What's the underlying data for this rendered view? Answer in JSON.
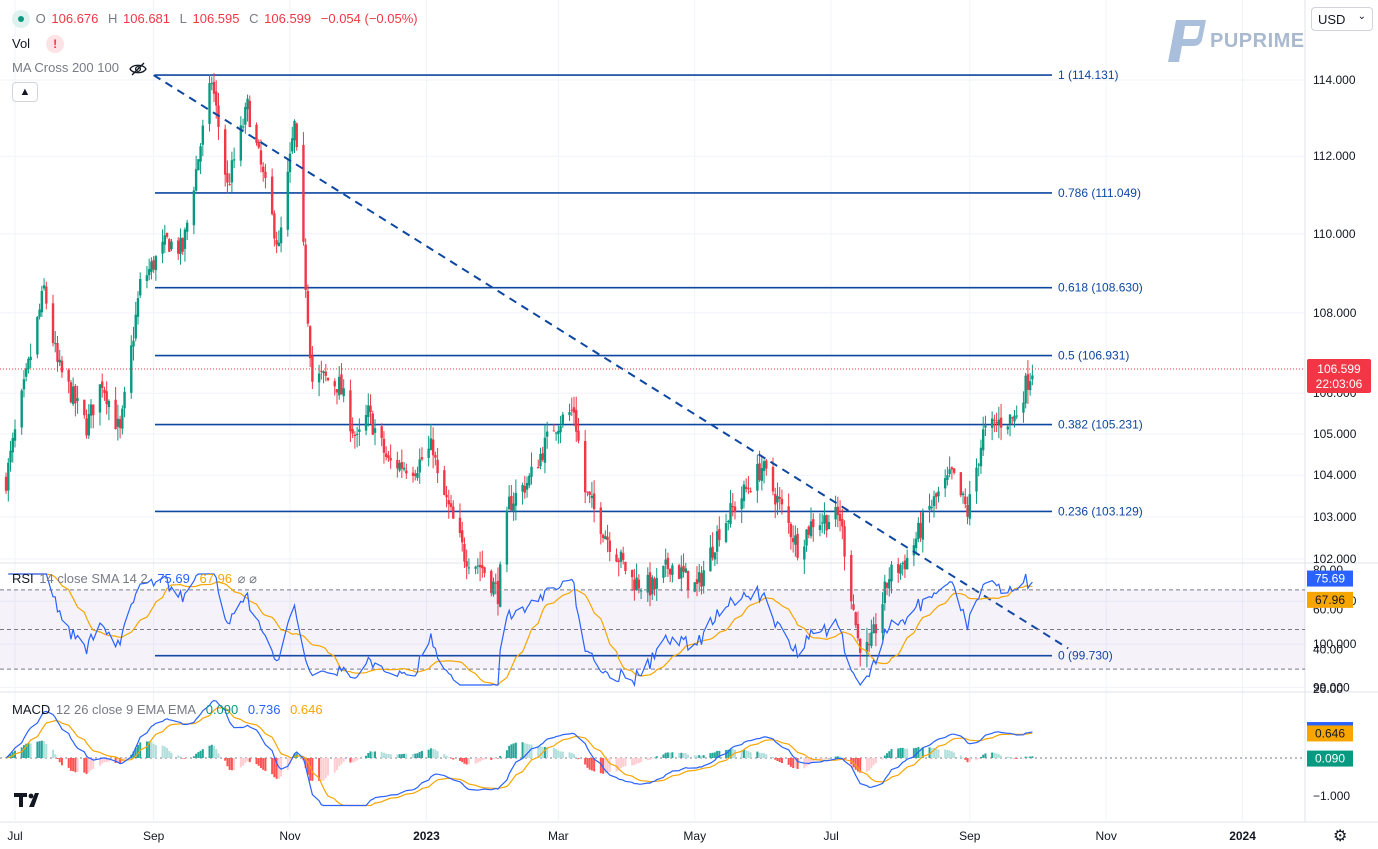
{
  "header": {
    "o_label": "O",
    "o_value": "106.676",
    "h_label": "H",
    "h_value": "106.681",
    "l_label": "L",
    "l_value": "106.595",
    "c_label": "C",
    "c_value": "106.599",
    "change": "−0.054 (−0.05%)",
    "vol_label": "Vol",
    "ma_label": "MA Cross 200 100"
  },
  "currency_select": {
    "value": "USD"
  },
  "logo": {
    "text": "PUPRIME"
  },
  "colors": {
    "up": "#089981",
    "down": "#f23645",
    "fib": "#0d47a1",
    "rsi": "#2962ff",
    "rsi_sma": "#f7a600",
    "macd": "#2962ff",
    "signal": "#f7a600"
  },
  "chart_data": [
    {
      "type": "candlestick",
      "title": "",
      "y_ticks": [
        "114.000",
        "112.000",
        "110.000",
        "108.000",
        "106.000",
        "105.000",
        "104.000",
        "103.000",
        "102.000",
        "101.000",
        "100.000",
        "99.000"
      ],
      "x_ticks": [
        "Jul",
        "Sep",
        "Nov",
        "2023",
        "Mar",
        "May",
        "Jul",
        "Sep",
        "Nov",
        "2024"
      ],
      "current_price": "106.599",
      "countdown": "22:03:06",
      "fib_levels": [
        {
          "label": "1 (114.131)",
          "value": 114.131
        },
        {
          "label": "0.786 (111.049)",
          "value": 111.049
        },
        {
          "label": "0.618 (108.630)",
          "value": 108.63
        },
        {
          "label": "0.5 (106.931)",
          "value": 106.931
        },
        {
          "label": "0.382 (105.231)",
          "value": 105.231
        },
        {
          "label": "0.236 (103.129)",
          "value": 103.129
        },
        {
          "label": "0 (99.730)",
          "value": 99.73
        }
      ],
      "trendline": {
        "from": {
          "date": "2022-09-01",
          "value": 114.13
        },
        "to": {
          "date": "2023-10-15",
          "value": 99.9
        }
      },
      "close_anchors": [
        [
          "2022-06-27",
          103.9
        ],
        [
          "2022-07-14",
          108.6
        ],
        [
          "2022-07-20",
          106.7
        ],
        [
          "2022-08-02",
          105.2
        ],
        [
          "2022-08-09",
          106.3
        ],
        [
          "2022-08-17",
          105.0
        ],
        [
          "2022-08-26",
          108.7
        ],
        [
          "2022-09-07",
          109.8
        ],
        [
          "2022-09-14",
          109.6
        ],
        [
          "2022-09-27",
          114.0
        ],
        [
          "2022-10-04",
          111.2
        ],
        [
          "2022-10-13",
          113.3
        ],
        [
          "2022-10-27",
          109.6
        ],
        [
          "2022-11-03",
          112.8
        ],
        [
          "2022-11-11",
          106.3
        ],
        [
          "2022-11-15",
          106.4
        ],
        [
          "2022-11-23",
          106.2
        ],
        [
          "2022-12-01",
          104.8
        ],
        [
          "2022-12-06",
          105.5
        ],
        [
          "2022-12-15",
          104.3
        ],
        [
          "2022-12-27",
          104.2
        ],
        [
          "2023-01-04",
          104.7
        ],
        [
          "2023-01-06",
          103.9
        ],
        [
          "2023-01-11",
          103.2
        ],
        [
          "2023-01-18",
          102.1
        ],
        [
          "2023-01-26",
          101.8
        ],
        [
          "2023-02-02",
          101.2
        ],
        [
          "2023-02-07",
          103.3
        ],
        [
          "2023-02-16",
          103.9
        ],
        [
          "2023-02-27",
          105.2
        ],
        [
          "2023-03-08",
          105.6
        ],
        [
          "2023-03-13",
          103.6
        ],
        [
          "2023-03-23",
          102.5
        ],
        [
          "2023-04-03",
          101.5
        ],
        [
          "2023-04-13",
          101.3
        ],
        [
          "2023-04-20",
          101.9
        ],
        [
          "2023-05-02",
          101.3
        ],
        [
          "2023-05-12",
          102.7
        ],
        [
          "2023-05-31",
          104.2
        ],
        [
          "2023-06-08",
          103.3
        ],
        [
          "2023-06-16",
          102.3
        ],
        [
          "2023-06-23",
          102.9
        ],
        [
          "2023-07-05",
          103.0
        ],
        [
          "2023-07-13",
          100.1
        ],
        [
          "2023-07-18",
          99.8
        ],
        [
          "2023-07-27",
          101.6
        ],
        [
          "2023-08-04",
          102.0
        ],
        [
          "2023-08-14",
          103.2
        ],
        [
          "2023-08-24",
          104.0
        ],
        [
          "2023-08-31",
          103.1
        ],
        [
          "2023-09-07",
          105.0
        ],
        [
          "2023-09-14",
          105.3
        ],
        [
          "2023-09-21",
          105.4
        ],
        [
          "2023-09-26",
          106.2
        ],
        [
          "2023-09-29",
          106.6
        ]
      ]
    },
    {
      "type": "line",
      "title": "RSI 14 close SMA 14 2",
      "series": [
        {
          "name": "RSI",
          "last": "75.69"
        },
        {
          "name": "SMA",
          "last": "67.96"
        }
      ],
      "y_ticks": [
        "80.00",
        "60.00",
        "40.00",
        "20.00"
      ],
      "ylim": [
        20,
        80
      ],
      "bands": [
        70,
        50,
        30
      ],
      "rsi_label": "RSI",
      "params": "14 close SMA 14 2",
      "value1": "75.69",
      "value2": "67.96"
    },
    {
      "type": "line",
      "title": "MACD 12 26 close 9 EMA EMA",
      "series": [
        {
          "name": "Histogram",
          "last": "0.090"
        },
        {
          "name": "MACD",
          "last": "0.736"
        },
        {
          "name": "Signal",
          "last": "0.646"
        }
      ],
      "y_ticks": [
        "−1.000"
      ],
      "macd_label": "MACD",
      "params": "12 26 close 9 EMA EMA",
      "hist": "0.090",
      "macd": "0.736",
      "signal": "0.646"
    }
  ]
}
